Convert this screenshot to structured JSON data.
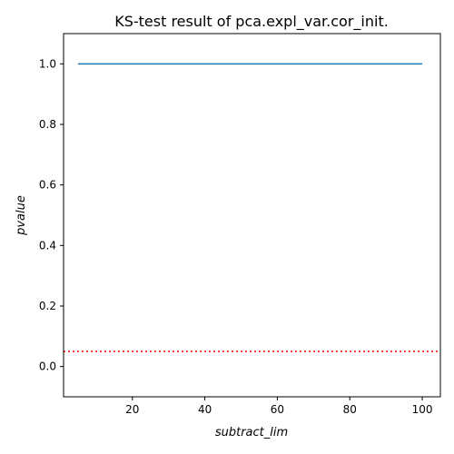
{
  "chart_data": {
    "type": "line",
    "title": "KS-test result of pca.expl_var.cor_init.",
    "xlabel": "subtract_lim",
    "ylabel": "pvalue",
    "xlim": [
      1,
      105
    ],
    "ylim": [
      -0.1,
      1.1
    ],
    "x_ticks": [
      20,
      40,
      60,
      80,
      100
    ],
    "y_ticks": [
      0.0,
      0.2,
      0.4,
      0.6,
      0.8,
      1.0
    ],
    "x_tick_labels": [
      "20",
      "40",
      "60",
      "80",
      "100"
    ],
    "y_tick_labels": [
      "0.0",
      "0.2",
      "0.4",
      "0.6",
      "0.8",
      "1.0"
    ],
    "grid": false,
    "series": [
      {
        "color": "#1f77b4",
        "style": "solid",
        "x": [
          5,
          100
        ],
        "y": [
          1.0,
          1.0
        ]
      }
    ],
    "reference_lines": [
      {
        "orientation": "horizontal",
        "y": 0.05,
        "color": "#ff0000",
        "style": "dotted"
      }
    ]
  }
}
